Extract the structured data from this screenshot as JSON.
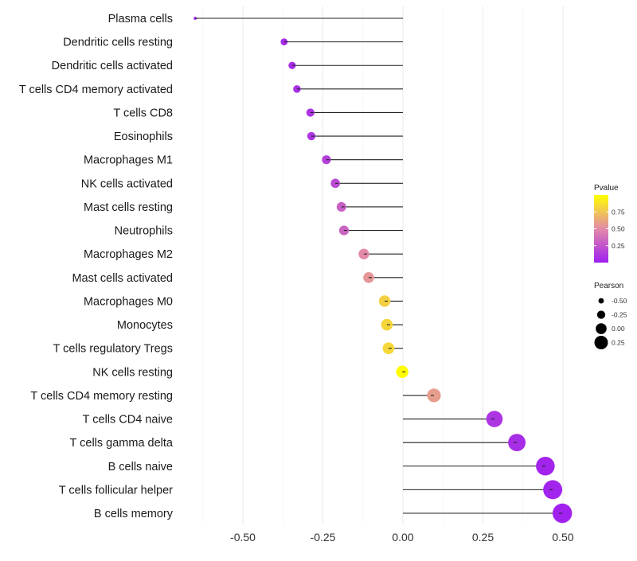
{
  "chart_data": {
    "type": "lollipop",
    "title": "",
    "xlabel": "",
    "ylabel": "",
    "xlim": [
      -0.7,
      0.57
    ],
    "xticks": [
      -0.5,
      -0.25,
      0.0,
      0.25,
      0.5
    ],
    "xtick_labels": [
      "-0.50",
      "-0.25",
      "0.00",
      "0.25",
      "0.50"
    ],
    "grid": true,
    "categories": [
      "Plasma cells",
      "Dendritic cells resting",
      "Dendritic cells activated",
      "T cells CD4 memory activated",
      "T cells CD8",
      "Eosinophils",
      "Macrophages M1",
      "NK cells activated",
      "Mast cells resting",
      "Neutrophils",
      "Macrophages M2",
      "Mast cells activated",
      "Macrophages M0",
      "Monocytes",
      "T cells regulatory  Tregs ",
      "NK cells resting",
      "T cells CD4 memory resting",
      "T cells CD4 naive",
      "T cells gamma delta",
      "B cells naive",
      "T cells follicular helper",
      "B cells memory"
    ],
    "pearson": [
      -0.649,
      -0.371,
      -0.346,
      -0.331,
      -0.289,
      -0.286,
      -0.239,
      -0.211,
      -0.192,
      -0.184,
      -0.122,
      -0.107,
      -0.057,
      -0.05,
      -0.045,
      -0.002,
      0.097,
      0.286,
      0.356,
      0.445,
      0.468,
      0.498
    ],
    "pvalue": [
      0.0,
      0.05,
      0.06,
      0.07,
      0.1,
      0.1,
      0.15,
      0.2,
      0.3,
      0.32,
      0.5,
      0.55,
      0.8,
      0.82,
      0.83,
      0.99,
      0.58,
      0.1,
      0.06,
      0.02,
      0.02,
      0.01
    ],
    "legend": {
      "color": {
        "title": "Pvalue",
        "ticks": [
          0.25,
          0.5,
          0.75
        ],
        "tick_labels": [
          "0.25",
          "0.50",
          "0.75"
        ],
        "low": "#a020f0",
        "mid": "#e28aa8",
        "high": "#ffff00"
      },
      "size": {
        "title": "Pearson",
        "values": [
          -0.5,
          -0.25,
          0.0,
          0.25
        ],
        "labels": [
          "-0.50",
          "-0.25",
          "0.00",
          "0.25"
        ]
      },
      "placement": "right"
    }
  }
}
